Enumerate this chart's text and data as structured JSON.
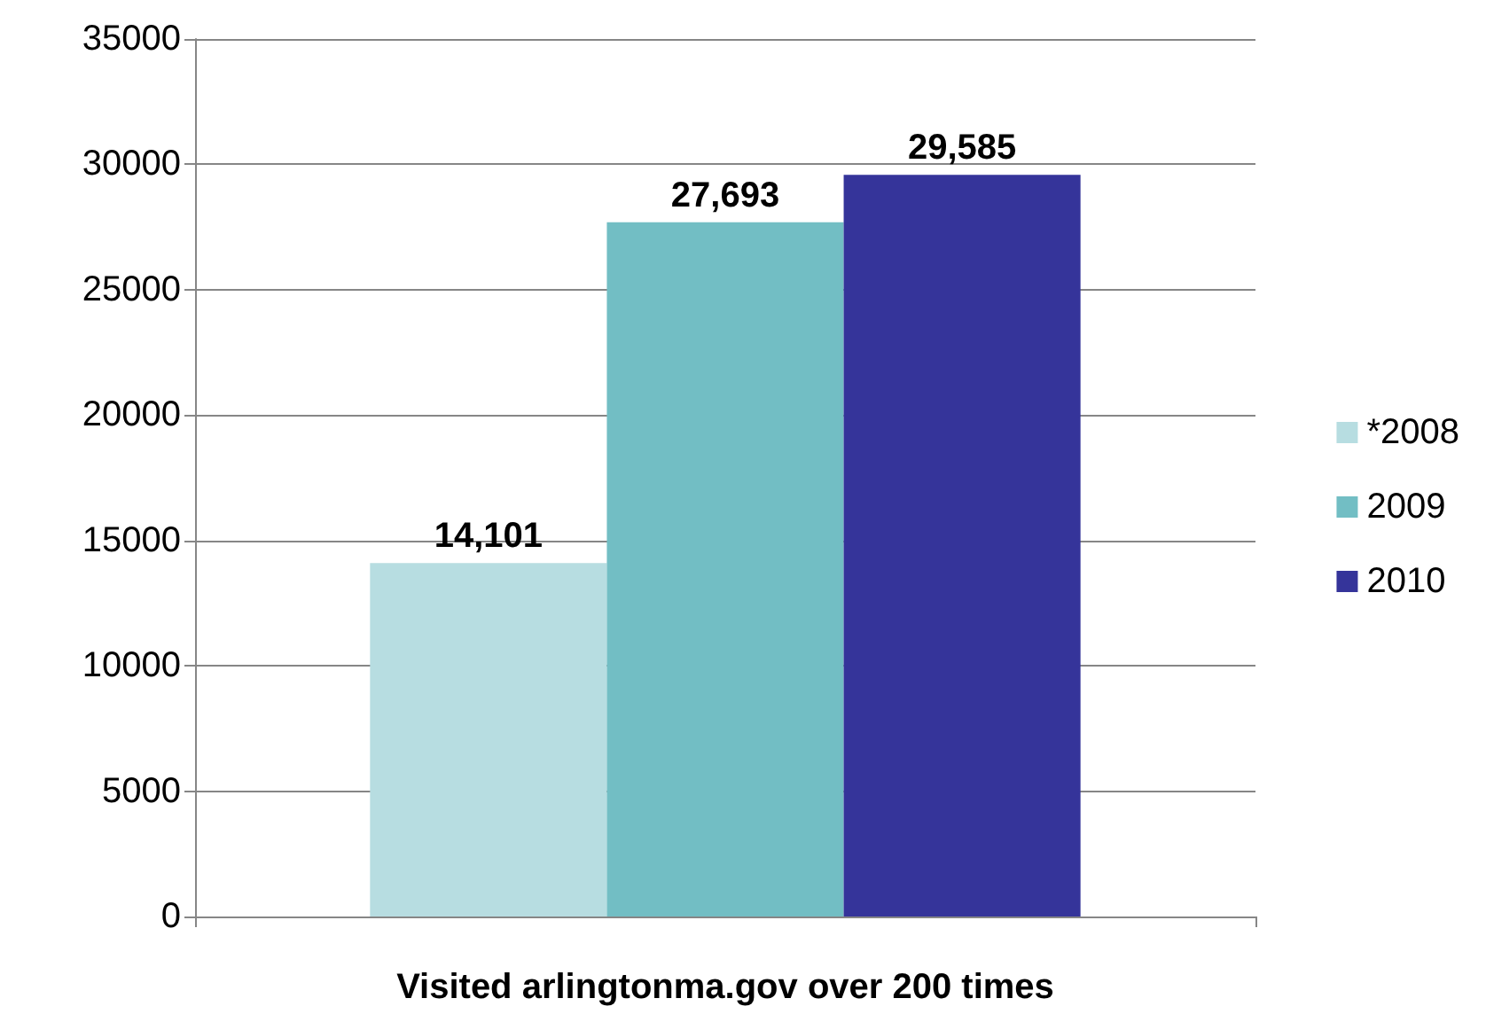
{
  "chart_data": {
    "type": "bar",
    "xlabel": "Visited arlingtonma.gov over 200 times",
    "categories": [
      null
    ],
    "series": [
      {
        "name": "*2008",
        "color": "#b7dde1",
        "values": [
          14101
        ],
        "value_labels": [
          "14,101"
        ]
      },
      {
        "name": "2009",
        "color": "#72bec4",
        "values": [
          27693
        ],
        "value_labels": [
          "27,693"
        ]
      },
      {
        "name": "2010",
        "color": "#35349a",
        "values": [
          29585
        ],
        "value_labels": [
          "29,585"
        ]
      }
    ],
    "ylim": [
      0,
      35000
    ],
    "yticks": [
      0,
      5000,
      10000,
      15000,
      20000,
      25000,
      30000,
      35000
    ],
    "grid": "y",
    "legend": "right"
  }
}
